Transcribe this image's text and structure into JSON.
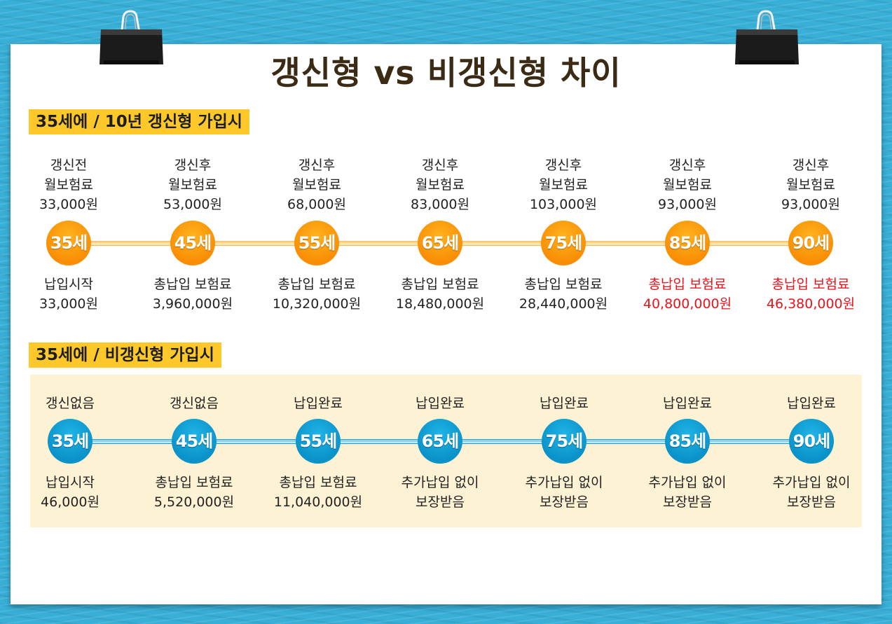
{
  "title": "갱신형 vs 비갱신형 차이",
  "renewal": {
    "label": "35세에 / 10년 갱신형 가입시",
    "columns": [
      {
        "top1": "갱신전",
        "top2": "월보험료",
        "top3": "33,000원",
        "age": "35세",
        "bottom1": "납입시작",
        "bottom2": "33,000원",
        "highlight": false
      },
      {
        "top1": "갱신후",
        "top2": "월보험료",
        "top3": "53,000원",
        "age": "45세",
        "bottom1": "총납입 보험료",
        "bottom2": "3,960,000원",
        "highlight": false
      },
      {
        "top1": "갱신후",
        "top2": "월보험료",
        "top3": "68,000원",
        "age": "55세",
        "bottom1": "총납입 보험료",
        "bottom2": "10,320,000원",
        "highlight": false
      },
      {
        "top1": "갱신후",
        "top2": "월보험료",
        "top3": "83,000원",
        "age": "65세",
        "bottom1": "총납입 보험료",
        "bottom2": "18,480,000원",
        "highlight": false
      },
      {
        "top1": "갱신후",
        "top2": "월보험료",
        "top3": "103,000원",
        "age": "75세",
        "bottom1": "총납입 보험료",
        "bottom2": "28,440,000원",
        "highlight": false
      },
      {
        "top1": "갱신후",
        "top2": "월보험료",
        "top3": "93,000원",
        "age": "85세",
        "bottom1": "총납입 보험료",
        "bottom2": "40,800,000원",
        "highlight": true
      },
      {
        "top1": "갱신후",
        "top2": "월보험료",
        "top3": "93,000원",
        "age": "90세",
        "bottom1": "총납입 보험료",
        "bottom2": "46,380,000원",
        "highlight": true
      }
    ]
  },
  "nonrenewal": {
    "label": "35세에 / 비갱신형 가입시",
    "columns": [
      {
        "top": "갱신없음",
        "age": "35세",
        "bottom1": "납입시작",
        "bottom2": "46,000원"
      },
      {
        "top": "갱신없음",
        "age": "45세",
        "bottom1": "총납입 보험료",
        "bottom2": "5,520,000원"
      },
      {
        "top": "납입완료",
        "age": "55세",
        "bottom1": "총납입 보험료",
        "bottom2": "11,040,000원"
      },
      {
        "top": "납입완료",
        "age": "65세",
        "bottom1": "추가납입 없이",
        "bottom2": "보장받음"
      },
      {
        "top": "납입완료",
        "age": "75세",
        "bottom1": "추가납입 없이",
        "bottom2": "보장받음"
      },
      {
        "top": "납입완료",
        "age": "85세",
        "bottom1": "추가납입 없이",
        "bottom2": "보장받음"
      },
      {
        "top": "납입완료",
        "age": "90세",
        "bottom1": "추가납입 없이",
        "bottom2": "보장받음"
      }
    ]
  },
  "colors": {
    "timeline_renewal": "#f98e05",
    "timeline_nonrenewal": "#0a92c9",
    "label_bg": "#ffc82a",
    "highlight_text": "#e8141c",
    "panel_bg": "#fdf2d3"
  }
}
